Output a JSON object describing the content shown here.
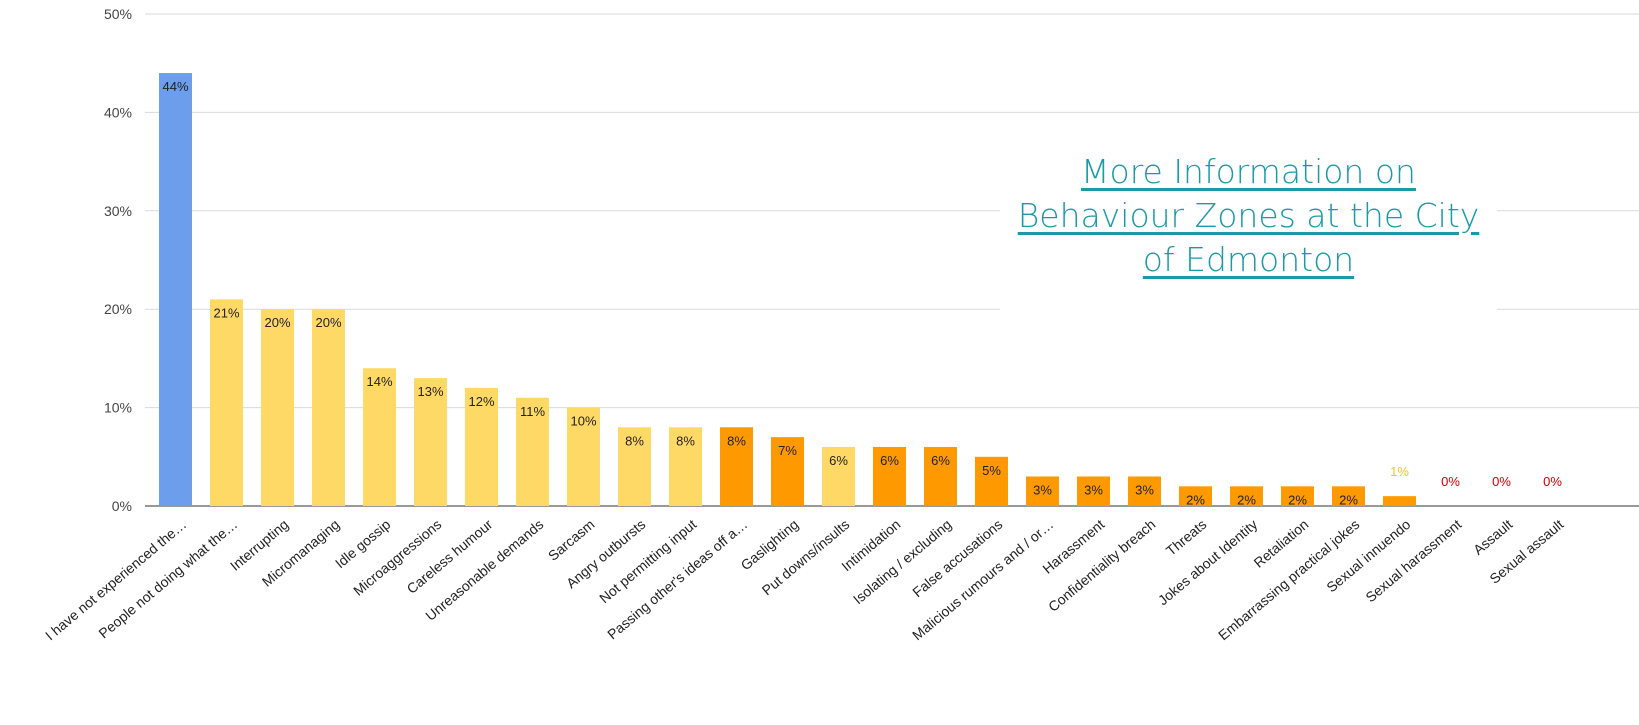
{
  "info_link": {
    "text": "More Information on Behaviour Zones at the City of Edmonton",
    "color": "#1a9aa8"
  },
  "colors": {
    "blue": "#6d9eeb",
    "yellow": "#ffd966",
    "orange": "#ff9900",
    "label_yellow": "#f1c232",
    "label_red": "#cc0000",
    "grid": "#d9d9d9"
  },
  "chart_data": {
    "type": "bar",
    "title": "",
    "xlabel": "",
    "ylabel": "",
    "ylim": [
      0,
      50
    ],
    "yticks": [
      "0%",
      "10%",
      "20%",
      "30%",
      "40%",
      "50%"
    ],
    "grid": true,
    "categories": [
      "I have not experienced the…",
      "People not doing what the…",
      "Interrupting",
      "Micromanaging",
      "Idle gossip",
      "Microaggressions",
      "Careless humour",
      "Unreasonable demands",
      "Sarcasm",
      "Angry outbursts",
      "Not permitting input",
      "Passing other's ideas off a…",
      "Gaslighting",
      "Put downs/insults",
      "Intimidation",
      "Isolating / excluding",
      "False accusations",
      "Malicious rumours and / or…",
      "Harassment",
      "Confidentiality breach",
      "Threats",
      "Jokes about Identity",
      "Retaliation",
      "Embarrassing practical jokes",
      "Sexual innuendo",
      "Sexual harassment",
      "Assault",
      "Sexual assault"
    ],
    "values": [
      44,
      21,
      20,
      20,
      14,
      13,
      12,
      11,
      10,
      8,
      8,
      8,
      7,
      6,
      6,
      6,
      5,
      3,
      3,
      3,
      2,
      2,
      2,
      2,
      1,
      0,
      0,
      0
    ],
    "value_labels": [
      "44%",
      "21%",
      "20%",
      "20%",
      "14%",
      "13%",
      "12%",
      "11%",
      "10%",
      "8%",
      "8%",
      "8%",
      "7%",
      "6%",
      "6%",
      "6%",
      "5%",
      "3%",
      "3%",
      "3%",
      "2%",
      "2%",
      "2%",
      "2%",
      "1%",
      "0%",
      "0%",
      "0%"
    ],
    "bar_colors": [
      "blue",
      "yellow",
      "yellow",
      "yellow",
      "yellow",
      "yellow",
      "yellow",
      "yellow",
      "yellow",
      "yellow",
      "yellow",
      "orange",
      "orange",
      "yellow",
      "orange",
      "orange",
      "orange",
      "orange",
      "orange",
      "orange",
      "orange",
      "orange",
      "orange",
      "orange",
      "orange",
      "orange",
      "orange",
      "orange"
    ]
  }
}
